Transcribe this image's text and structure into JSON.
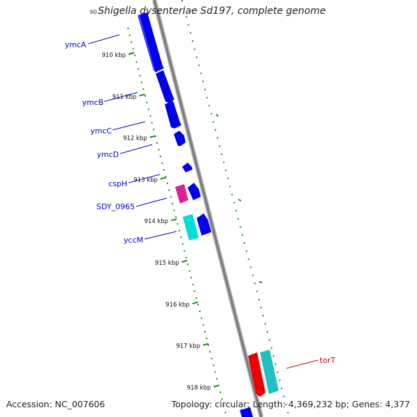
{
  "title_prefix": "90",
  "title": "Shigella dysenteriae Sd197, complete genome",
  "footer": {
    "accession": "Accession: NC_007606",
    "topology": "Topology: circular; Length: 4,369,232 bp; Genes: 4,377"
  },
  "ticks": [
    {
      "label": "910 kbp",
      "pos": 910
    },
    {
      "label": "911 kbp",
      "pos": 911
    },
    {
      "label": "912 kbp",
      "pos": 912
    },
    {
      "label": "913 kbp",
      "pos": 913
    },
    {
      "label": "914 kbp",
      "pos": 914
    },
    {
      "label": "915 kbp",
      "pos": 915
    },
    {
      "label": "916 kbp",
      "pos": 916
    },
    {
      "label": "917 kbp",
      "pos": 917
    },
    {
      "label": "918 kbp",
      "pos": 918
    }
  ],
  "gene_labels": [
    {
      "name": "ymcA",
      "color": "#0000cc"
    },
    {
      "name": "ymcB",
      "color": "#0000cc"
    },
    {
      "name": "ymcC",
      "color": "#0000cc"
    },
    {
      "name": "ymcD",
      "color": "#0000cc"
    },
    {
      "name": "cspH",
      "color": "#0000cc"
    },
    {
      "name": "SDY_0965",
      "color": "#0000cc"
    },
    {
      "name": "yccM",
      "color": "#0000cc"
    },
    {
      "name": "torT",
      "color": "#cc0000"
    }
  ],
  "colors": {
    "backbone": "#8a8a8a",
    "forward_gene": "#0000ee",
    "pseudo_gene": "#e0208f",
    "cyan_gene": "#00dddd",
    "red_gene": "#ee0000",
    "teal_gene": "#20c0c0",
    "tick_dots": "#1a8a1a"
  }
}
